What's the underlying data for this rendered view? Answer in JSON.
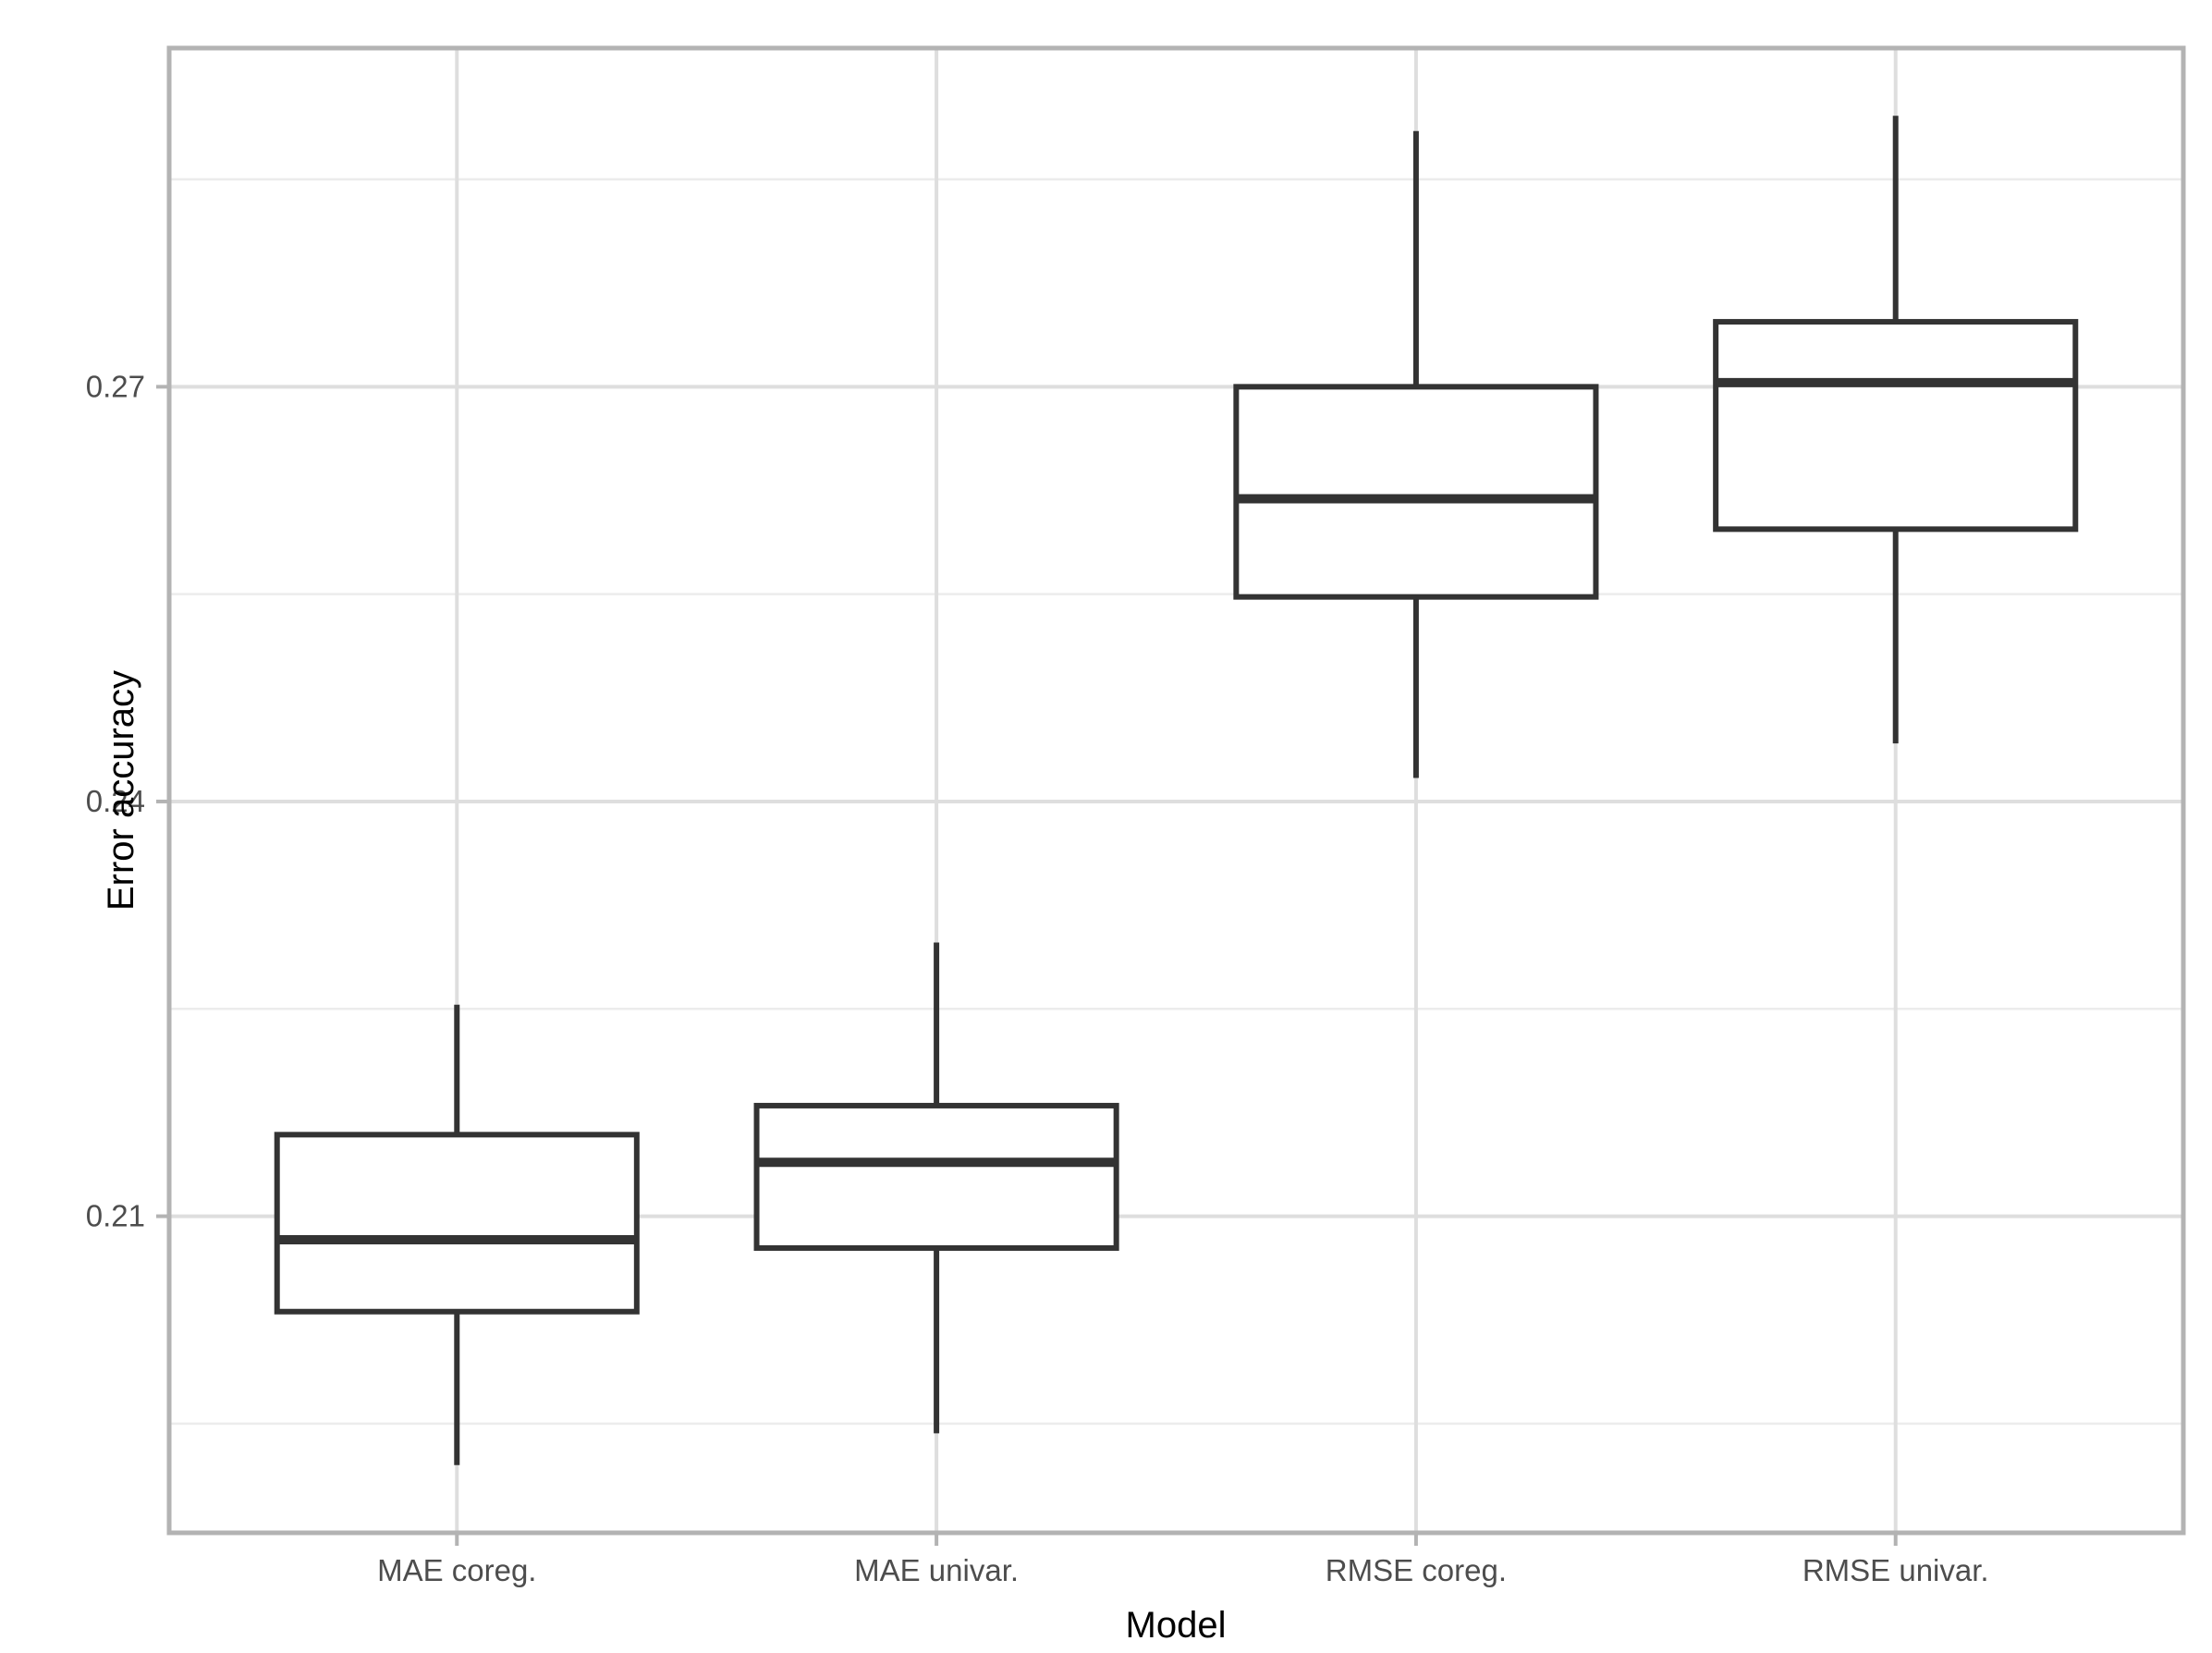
{
  "figure": {
    "kind": "boxplot-figure",
    "background": "#FFFFFF"
  },
  "chart_data": {
    "type": "boxplot",
    "title": "",
    "xlabel": "Model",
    "ylabel": "Error accuracy",
    "categories": [
      "MAE coreg.",
      "MAE univar.",
      "RMSE coreg.",
      "RMSE univar."
    ],
    "boxes": [
      {
        "category": "MAE coreg.",
        "whisker_low": 0.192,
        "q1": 0.2031,
        "median": 0.2083,
        "q3": 0.2159,
        "whisker_high": 0.2253
      },
      {
        "category": "MAE univar.",
        "whisker_low": 0.1943,
        "q1": 0.2077,
        "median": 0.2139,
        "q3": 0.218,
        "whisker_high": 0.2298
      },
      {
        "category": "RMSE coreg.",
        "whisker_low": 0.2417,
        "q1": 0.2548,
        "median": 0.2619,
        "q3": 0.27,
        "whisker_high": 0.2885
      },
      {
        "category": "RMSE univar.",
        "whisker_low": 0.2442,
        "q1": 0.2597,
        "median": 0.2703,
        "q3": 0.2747,
        "whisker_high": 0.2896
      }
    ],
    "y_axis": {
      "ticks": [
        0.21,
        0.24,
        0.27
      ],
      "tick_labels": [
        "0.21",
        "0.24",
        "0.27"
      ],
      "minor_gridlines": [
        0.195,
        0.225,
        0.255,
        0.285
      ],
      "range": [
        0.1871,
        0.2945
      ]
    },
    "x_axis": {
      "tick_labels": [
        "MAE coreg.",
        "MAE univar.",
        "RMSE coreg.",
        "RMSE univar."
      ]
    },
    "grid": true,
    "legend": false,
    "colors": {
      "box_stroke": "#333333",
      "box_fill": "#FFFFFF",
      "panel_border": "#B3B3B3",
      "grid_major": "#DEDEDE",
      "grid_minor": "#ECECEC",
      "tick_mark": "#B3B3B3",
      "axis_text": "#4D4D4D",
      "axis_title": "#000000",
      "background": "#FFFFFF"
    }
  }
}
